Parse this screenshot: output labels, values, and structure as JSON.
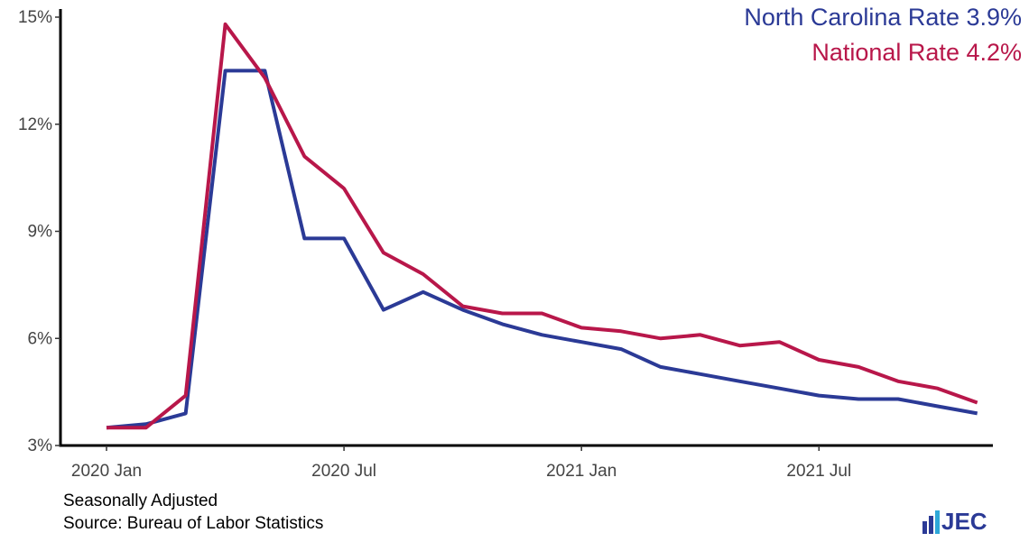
{
  "chart_data": {
    "type": "line",
    "categories": [
      "2020 Jan",
      null,
      null,
      null,
      null,
      null,
      "2020 Jul",
      null,
      null,
      null,
      null,
      null,
      "2021 Jan",
      null,
      null,
      null,
      null,
      null,
      "2021 Jul",
      null,
      null,
      null,
      null
    ],
    "series": [
      {
        "name": "North Carolina Rate 3.9%",
        "color": "#2b3a96",
        "values": [
          3.5,
          3.6,
          3.9,
          13.5,
          13.5,
          8.8,
          8.8,
          6.8,
          7.3,
          6.8,
          6.4,
          6.1,
          5.9,
          5.7,
          5.2,
          5.0,
          4.8,
          4.6,
          4.4,
          4.3,
          4.3,
          4.1,
          3.9
        ]
      },
      {
        "name": "National Rate 4.2%",
        "color": "#b8174a",
        "values": [
          3.5,
          3.5,
          4.4,
          14.8,
          13.3,
          11.1,
          10.2,
          8.4,
          7.8,
          6.9,
          6.7,
          6.7,
          6.3,
          6.2,
          6.0,
          6.1,
          5.8,
          5.9,
          5.4,
          5.2,
          4.8,
          4.6,
          4.2
        ]
      }
    ],
    "ylim": [
      3,
      15
    ],
    "yticks": [
      {
        "value": 3,
        "label": "3%"
      },
      {
        "value": 6,
        "label": "6%"
      },
      {
        "value": 9,
        "label": "9%"
      },
      {
        "value": 12,
        "label": "12%"
      },
      {
        "value": 15,
        "label": "15%"
      }
    ],
    "grid": false,
    "legend": "top-right",
    "notes": [
      "Seasonally Adjusted",
      "Source: Bureau of Labor Statistics"
    ],
    "logo": "JEC"
  }
}
